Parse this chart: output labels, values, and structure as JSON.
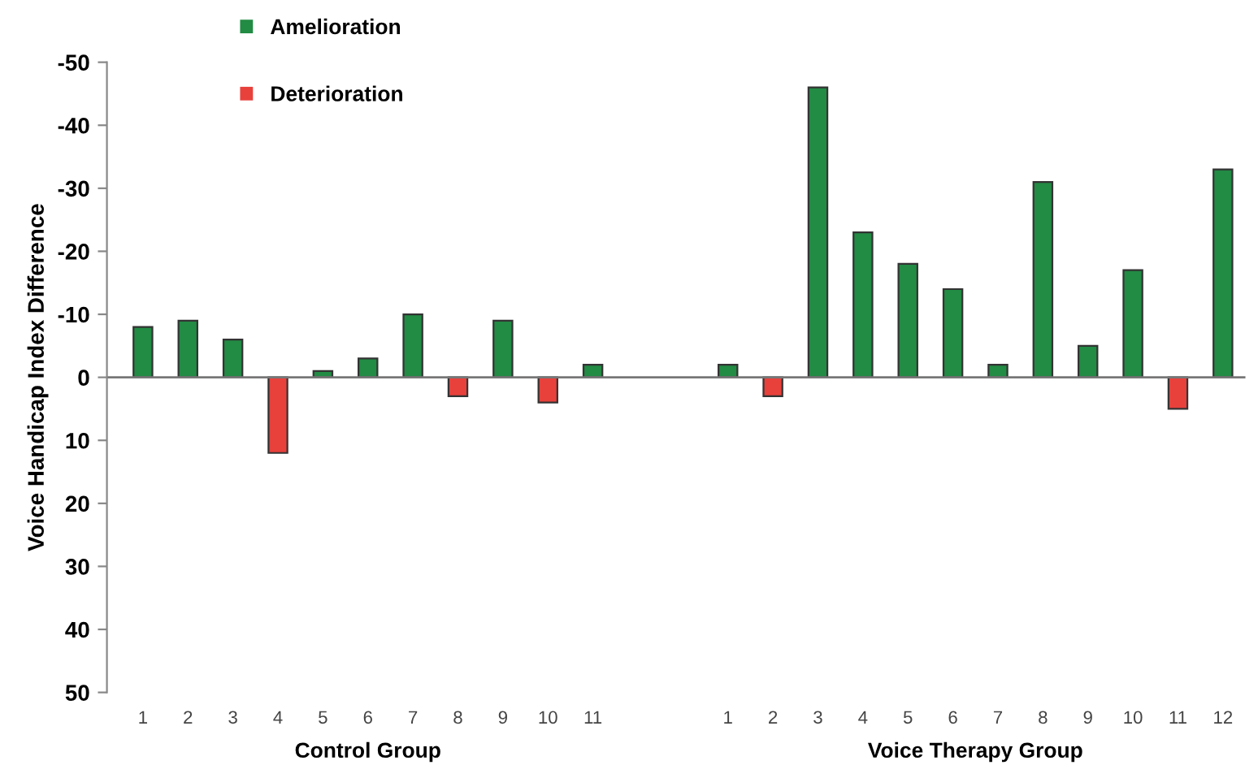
{
  "chart_data": {
    "type": "bar",
    "ylabel": "Voice Handicap Index Difference",
    "categories": [
      "1",
      "2",
      "3",
      "4",
      "5",
      "6",
      "7",
      "8",
      "9",
      "10",
      "11",
      null,
      null,
      "1",
      "2",
      "3",
      "4",
      "5",
      "6",
      "7",
      "8",
      "9",
      "10",
      "11",
      "12"
    ],
    "series": [
      {
        "name": "Amelioration",
        "color": "#228b44",
        "values": [
          -8,
          -9,
          -6,
          null,
          -1,
          -3,
          -10,
          null,
          -9,
          null,
          -2,
          null,
          null,
          -2,
          null,
          -46,
          -23,
          -18,
          -14,
          -2,
          -31,
          -5,
          -17,
          null,
          -33
        ]
      },
      {
        "name": "Deterioration",
        "color": "#e8413c",
        "values": [
          null,
          null,
          null,
          12,
          null,
          null,
          null,
          3,
          null,
          4,
          null,
          null,
          null,
          null,
          3,
          null,
          null,
          null,
          null,
          null,
          null,
          null,
          null,
          5,
          null
        ]
      }
    ],
    "ylim": [
      50,
      -50
    ],
    "yticks": [
      -50,
      -40,
      -30,
      -20,
      -10,
      0,
      10,
      20,
      30,
      40,
      50
    ],
    "legend": "top left",
    "annotations": [
      "Control Group",
      "Voice Therapy Group"
    ]
  }
}
